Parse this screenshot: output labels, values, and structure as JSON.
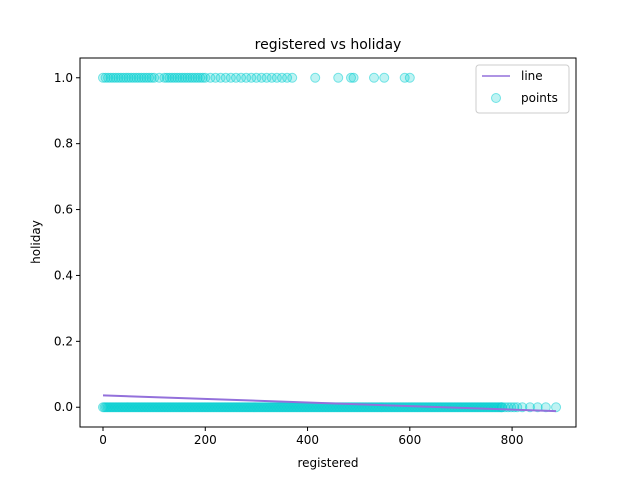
{
  "chart_data": {
    "type": "scatter",
    "title": "registered vs holiday",
    "xlabel": "registered",
    "ylabel": "holiday",
    "xlim": [
      -45,
      925
    ],
    "ylim": [
      -0.06,
      1.06
    ],
    "xticks": [
      0,
      200,
      400,
      600,
      800
    ],
    "yticks": [
      0.0,
      0.2,
      0.4,
      0.6,
      0.8,
      1.0
    ],
    "xtick_labels": [
      "0",
      "200",
      "400",
      "600",
      "800"
    ],
    "ytick_labels": [
      "0.0",
      "0.2",
      "0.4",
      "0.6",
      "0.8",
      "1.0"
    ],
    "grid": false,
    "legend_position": "top-right",
    "colors": {
      "points": "#00CED1",
      "line": "#9370DB"
    },
    "series": [
      {
        "name": "line",
        "kind": "line",
        "x": [
          0,
          886
        ],
        "y": [
          0.036,
          -0.012
        ]
      },
      {
        "name": "points",
        "kind": "scatter",
        "y_levels": [
          0,
          1
        ],
        "x_holiday_1": [
          0,
          5,
          10,
          15,
          20,
          25,
          30,
          35,
          40,
          45,
          50,
          55,
          60,
          65,
          70,
          75,
          80,
          85,
          90,
          95,
          100,
          110,
          120,
          125,
          130,
          135,
          140,
          145,
          150,
          155,
          160,
          165,
          170,
          175,
          180,
          185,
          190,
          195,
          200,
          210,
          220,
          230,
          240,
          250,
          260,
          270,
          280,
          290,
          300,
          310,
          320,
          330,
          340,
          350,
          360,
          370,
          415,
          460,
          485,
          490,
          530,
          550,
          590,
          600
        ],
        "x_holiday_0_range": [
          0,
          886
        ],
        "x_holiday_0_sparse": [
          820,
          835,
          850,
          866,
          886
        ]
      }
    ]
  },
  "legend": {
    "line_label": "line",
    "points_label": "points"
  }
}
